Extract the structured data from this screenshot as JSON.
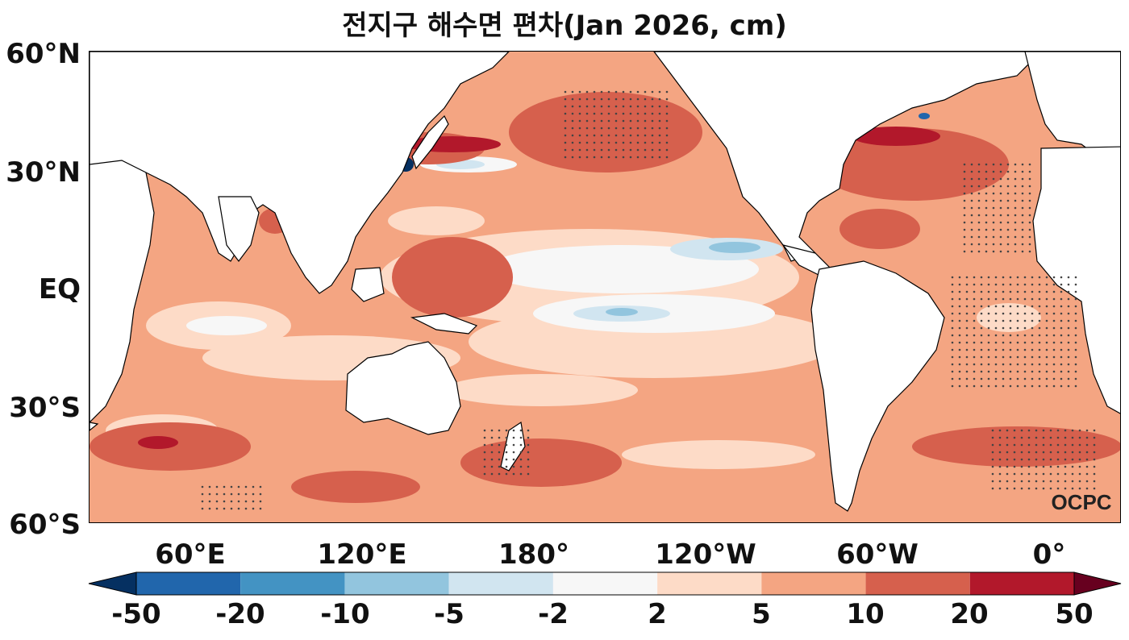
{
  "title": "전지구 해수면 편차(Jan 2026, cm)",
  "watermark": "OCPC",
  "lat_ticks": [
    "60°N",
    "30°N",
    "EQ",
    "30°S",
    "60°S"
  ],
  "lon_ticks": [
    "60°E",
    "120°E",
    "180°",
    "120°W",
    "60°W",
    "0°"
  ],
  "colorbar": {
    "tick_labels": [
      "-50",
      "-20",
      "-10",
      "-5",
      "-2",
      "2",
      "5",
      "10",
      "20",
      "50"
    ],
    "colors": [
      "#053061",
      "#2166ac",
      "#4393c3",
      "#92c5de",
      "#d1e5f0",
      "#f7f7f7",
      "#fddbc7",
      "#f4a582",
      "#d6604d",
      "#b2182b",
      "#67001f"
    ]
  },
  "colors": {
    "land": "#ffffff",
    "coastline": "#000000",
    "ocean_base": "#f4a582"
  }
}
